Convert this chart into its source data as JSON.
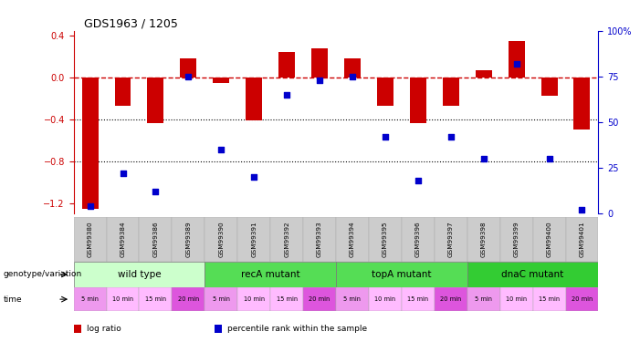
{
  "title": "GDS1963 / 1205",
  "samples": [
    "GSM99380",
    "GSM99384",
    "GSM99386",
    "GSM99389",
    "GSM99390",
    "GSM99391",
    "GSM99392",
    "GSM99393",
    "GSM99394",
    "GSM99395",
    "GSM99396",
    "GSM99397",
    "GSM99398",
    "GSM99399",
    "GSM99400",
    "GSM99401"
  ],
  "log_ratio": [
    -1.25,
    -0.27,
    -0.43,
    0.19,
    -0.05,
    -0.41,
    0.25,
    0.28,
    0.19,
    -0.27,
    -0.43,
    -0.27,
    0.07,
    0.35,
    -0.17,
    -0.49
  ],
  "percentile": [
    4,
    22,
    12,
    75,
    35,
    20,
    65,
    73,
    75,
    42,
    18,
    42,
    30,
    82,
    30,
    2
  ],
  "ylim_left": [
    -1.3,
    0.45
  ],
  "ylim_right": [
    0,
    100
  ],
  "yticks_left": [
    -1.2,
    -0.8,
    -0.4,
    0.0,
    0.4
  ],
  "yticks_right": [
    0,
    25,
    50,
    75,
    100
  ],
  "bar_color": "#cc0000",
  "dot_color": "#0000cc",
  "dashed_line_color": "#cc0000",
  "dotted_line_color": "#000000",
  "groups": [
    {
      "label": "wild type",
      "start": 0,
      "end": 4,
      "color": "#ccffcc"
    },
    {
      "label": "recA mutant",
      "start": 4,
      "end": 8,
      "color": "#55dd55"
    },
    {
      "label": "topA mutant",
      "start": 8,
      "end": 12,
      "color": "#55dd55"
    },
    {
      "label": "dnaC mutant",
      "start": 12,
      "end": 16,
      "color": "#33cc33"
    }
  ],
  "time_labels": [
    "5 min",
    "10 min",
    "15 min",
    "20 min",
    "5 min",
    "10 min",
    "15 min",
    "20 min",
    "5 min",
    "10 min",
    "15 min",
    "20 min",
    "5 min",
    "10 min",
    "15 min",
    "20 min"
  ],
  "time_colors": [
    "#ee99ee",
    "#ffbbff",
    "#ffbbff",
    "#dd55dd",
    "#ee99ee",
    "#ffbbff",
    "#ffbbff",
    "#dd55dd",
    "#ee99ee",
    "#ffbbff",
    "#ffbbff",
    "#dd55dd",
    "#ee99ee",
    "#ffbbff",
    "#ffbbff",
    "#dd55dd"
  ],
  "legend_items": [
    {
      "color": "#cc0000",
      "label": "log ratio"
    },
    {
      "color": "#0000cc",
      "label": "percentile rank within the sample"
    }
  ],
  "left_axis_color": "#cc0000",
  "right_axis_color": "#0000cc",
  "gsm_bg_color": "#cccccc",
  "gsm_border_color": "#ffffff"
}
